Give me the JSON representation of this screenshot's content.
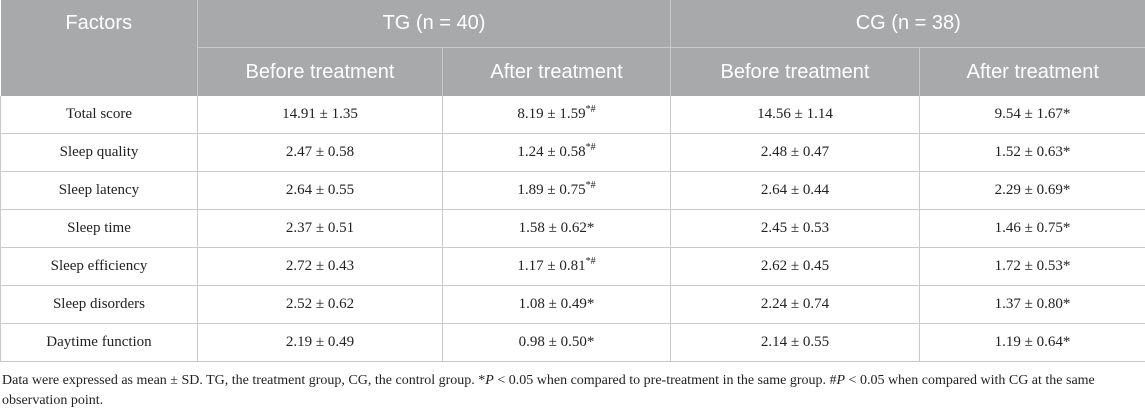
{
  "header": {
    "factors": "Factors",
    "groups": [
      "TG (n = 40)",
      "CG (n = 38)"
    ],
    "subheaders": [
      "Before treatment",
      "After treatment",
      "Before treatment",
      "After treatment"
    ]
  },
  "rows": [
    {
      "factor": "Total score",
      "tg_before": "14.91 ± 1.35",
      "tg_after": "8.19 ± 1.59",
      "tg_after_sup": "*#",
      "cg_before": "14.56 ± 1.14",
      "cg_after": "9.54 ± 1.67*"
    },
    {
      "factor": "Sleep quality",
      "tg_before": "2.47 ± 0.58",
      "tg_after": "1.24 ± 0.58",
      "tg_after_sup": "*#",
      "cg_before": "2.48 ± 0.47",
      "cg_after": "1.52 ± 0.63*"
    },
    {
      "factor": "Sleep latency",
      "tg_before": "2.64 ± 0.55",
      "tg_after": "1.89 ± 0.75",
      "tg_after_sup": "*#",
      "cg_before": "2.64 ± 0.44",
      "cg_after": "2.29 ± 0.69*"
    },
    {
      "factor": "Sleep time",
      "tg_before": "2.37 ± 0.51",
      "tg_after": "1.58 ± 0.62*",
      "tg_after_sup": "",
      "cg_before": "2.45 ± 0.53",
      "cg_after": "1.46 ± 0.75*"
    },
    {
      "factor": "Sleep efficiency",
      "tg_before": "2.72 ± 0.43",
      "tg_after": "1.17 ± 0.81",
      "tg_after_sup": "*#",
      "cg_before": "2.62 ± 0.45",
      "cg_after": "1.72 ± 0.53*"
    },
    {
      "factor": "Sleep disorders",
      "tg_before": "2.52 ± 0.62",
      "tg_after": "1.08 ± 0.49*",
      "tg_after_sup": "",
      "cg_before": "2.24 ± 0.74",
      "cg_after": "1.37 ± 0.80*"
    },
    {
      "factor": "Daytime function",
      "tg_before": "2.19 ± 0.49",
      "tg_after": "0.98 ± 0.50*",
      "tg_after_sup": "",
      "cg_before": "2.14 ± 0.55",
      "cg_after": "1.19 ± 0.64*"
    }
  ],
  "footnote": {
    "part1": "Data were expressed as mean ± SD. TG, the treatment group, CG, the control group. *",
    "p1": "P",
    "part2": " < 0.05 when compared to pre-treatment in the same group. #",
    "p2": "P",
    "part3": " < 0.05 when compared with CG at the same observation point."
  }
}
